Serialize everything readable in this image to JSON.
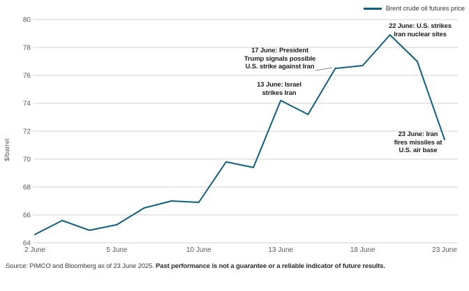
{
  "legend": {
    "label": "Brent crude oil futures price"
  },
  "y_axis": {
    "title": "$/barrel"
  },
  "source": {
    "regular": "Source: PIMCO and Bloomberg as of 23 June 2025. ",
    "bold": "Past performance is not a guarantee or a reliable indicator of future results."
  },
  "chart_data": {
    "type": "line",
    "title": "",
    "xlabel": "",
    "ylabel": "$/barrel",
    "ylim": [
      64,
      80
    ],
    "yticks": [
      64,
      66,
      68,
      70,
      72,
      74,
      76,
      78,
      80
    ],
    "grid": true,
    "legend_position": "top-right",
    "line_color": "#0E607E",
    "gridline_color": "#D1D1D1",
    "tick_label_color": "#58595B",
    "x": [
      "2 June",
      "3 June",
      "4 June",
      "5 June",
      "6 June",
      "9 June",
      "10 June",
      "11 June",
      "12 June",
      "13 June",
      "16 June",
      "17 June",
      "18 June",
      "19 June",
      "20 June",
      "23 June"
    ],
    "series": [
      {
        "name": "Brent crude oil futures price",
        "values": [
          64.6,
          65.6,
          64.9,
          65.3,
          66.5,
          67.0,
          66.9,
          69.8,
          69.4,
          74.2,
          73.2,
          76.5,
          76.7,
          78.9,
          77.0,
          71.4
        ]
      }
    ],
    "x_ticks": [
      {
        "label": "2 June",
        "index": 0
      },
      {
        "label": "5 June",
        "index": 3
      },
      {
        "label": "10 June",
        "index": 6
      },
      {
        "label": "13 June",
        "index": 9
      },
      {
        "label": "18 June",
        "index": 12
      },
      {
        "label": "23 June",
        "index": 15
      }
    ],
    "annotations": [
      {
        "anchor": "13 June",
        "lines": [
          "13 June: Israel",
          "strikes Iran"
        ]
      },
      {
        "anchor": "17 June",
        "lines": [
          "17 June: President",
          "Trump signals possible",
          "U.S. strike against Iran"
        ]
      },
      {
        "anchor": "22 June",
        "lines": [
          "22 June: U.S. strikes",
          "Iran nuclear sites"
        ]
      },
      {
        "anchor": "23 June",
        "lines": [
          "23 June: Iran",
          "fires missiles at",
          "U.S. air base"
        ]
      }
    ]
  }
}
